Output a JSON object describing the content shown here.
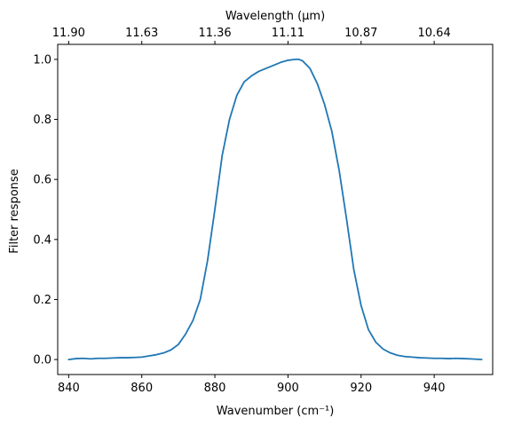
{
  "chart_data": {
    "type": "line",
    "xlabel": "Wavenumber (cm⁻¹)",
    "ylabel": "Filter response",
    "x2label": "Wavelength (μm)",
    "xlim": [
      837,
      956
    ],
    "ylim": [
      -0.05,
      1.05
    ],
    "xticks": [
      840,
      860,
      880,
      900,
      920,
      940
    ],
    "yticks": [
      0.0,
      0.2,
      0.4,
      0.6,
      0.8,
      1.0
    ],
    "ytick_labels": [
      "0.0",
      "0.2",
      "0.4",
      "0.6",
      "0.8",
      "1.0"
    ],
    "x2_ticks_at_x": [
      840,
      860,
      880,
      900,
      920,
      940
    ],
    "x2_tick_labels": [
      "11.90",
      "11.63",
      "11.36",
      "11.11",
      "10.87",
      "10.64"
    ],
    "grid": false,
    "series": [
      {
        "color": "#1f77b4",
        "x": [
          840,
          842,
          844,
          846,
          848,
          850,
          852,
          854,
          856,
          858,
          860,
          862,
          864,
          866,
          868,
          870,
          872,
          874,
          876,
          878,
          880,
          882,
          884,
          886,
          888,
          890,
          892,
          894,
          896,
          898,
          900,
          902,
          903,
          904,
          906,
          908,
          910,
          912,
          914,
          916,
          918,
          920,
          922,
          924,
          926,
          928,
          930,
          932,
          934,
          936,
          938,
          940,
          942,
          944,
          946,
          948,
          950,
          953
        ],
        "y": [
          0.0,
          0.003,
          0.004,
          0.002,
          0.004,
          0.004,
          0.005,
          0.006,
          0.006,
          0.007,
          0.008,
          0.012,
          0.016,
          0.022,
          0.032,
          0.05,
          0.085,
          0.13,
          0.2,
          0.33,
          0.5,
          0.68,
          0.8,
          0.88,
          0.925,
          0.945,
          0.96,
          0.97,
          0.98,
          0.99,
          0.997,
          1.0,
          1.0,
          0.995,
          0.97,
          0.92,
          0.85,
          0.76,
          0.63,
          0.47,
          0.3,
          0.18,
          0.1,
          0.058,
          0.035,
          0.022,
          0.014,
          0.01,
          0.008,
          0.006,
          0.005,
          0.004,
          0.004,
          0.003,
          0.004,
          0.003,
          0.002,
          0.0
        ]
      }
    ]
  }
}
